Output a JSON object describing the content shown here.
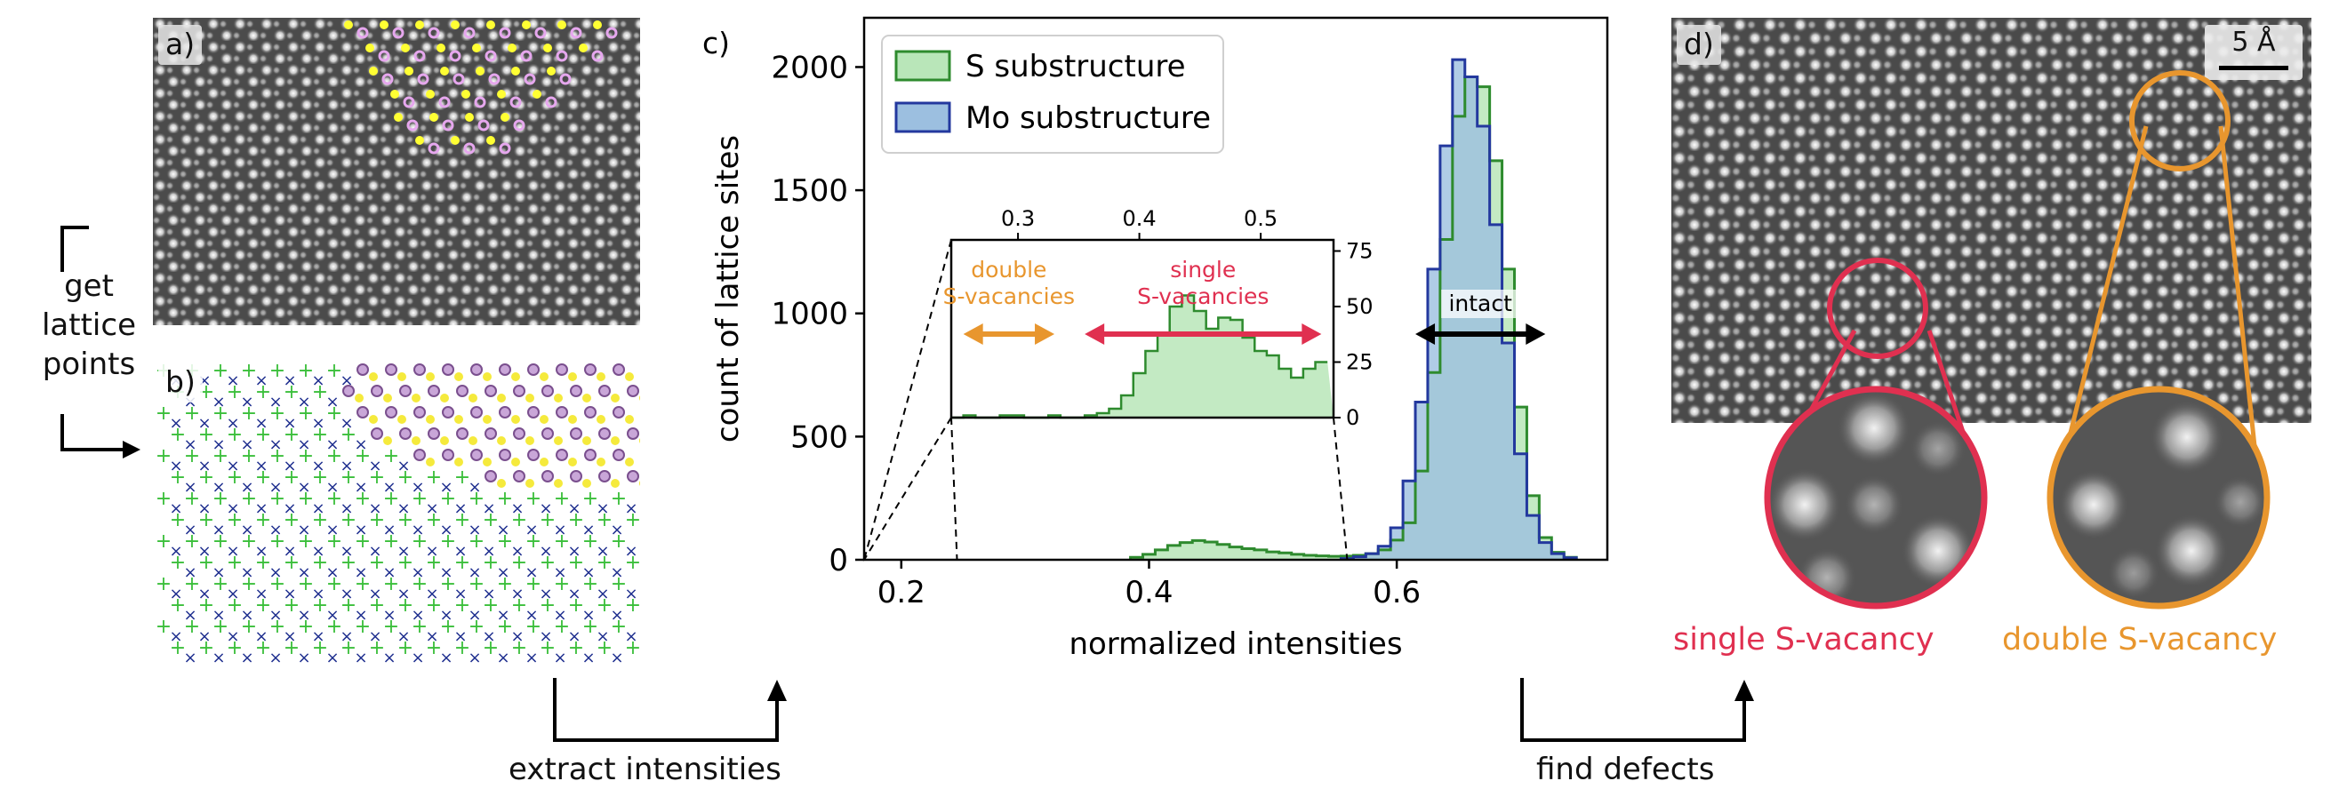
{
  "panels": {
    "a": {
      "tag": "a)"
    },
    "b": {
      "tag": "b)"
    },
    "c": {
      "tag": "c)"
    },
    "d": {
      "tag": "d)",
      "scalebar": "5 Å"
    }
  },
  "flow": {
    "get_lattice_points": [
      "get",
      "lattice",
      "points"
    ],
    "extract_intensities": "extract intensities",
    "find_defects": "find defects"
  },
  "chart_data": {
    "type": "area",
    "title": "",
    "xlabel": "normalized intensities",
    "ylabel": "count of lattice sites",
    "xlim": [
      0.17,
      0.77
    ],
    "ylim": [
      0,
      2200
    ],
    "xticks": [
      0.2,
      0.4,
      0.6
    ],
    "yticks": [
      0,
      500,
      1000,
      1500,
      2000
    ],
    "legend_placement": "top-left",
    "bin_width": 0.01,
    "series": [
      {
        "name": "S substructure",
        "color": "#2e8b2e",
        "fill": "#b9e6b9",
        "x": [
          0.39,
          0.4,
          0.41,
          0.42,
          0.43,
          0.44,
          0.45,
          0.46,
          0.47,
          0.48,
          0.49,
          0.5,
          0.51,
          0.52,
          0.53,
          0.54,
          0.55,
          0.56,
          0.57,
          0.58,
          0.59,
          0.6,
          0.61,
          0.62,
          0.63,
          0.64,
          0.65,
          0.66,
          0.67,
          0.68,
          0.69,
          0.7,
          0.71,
          0.72,
          0.73,
          0.74
        ],
        "values": [
          10,
          22,
          40,
          58,
          70,
          78,
          72,
          62,
          52,
          45,
          40,
          32,
          28,
          22,
          18,
          16,
          14,
          15,
          18,
          25,
          40,
          80,
          150,
          360,
          760,
          1300,
          1800,
          1960,
          1920,
          1620,
          1180,
          620,
          260,
          90,
          30,
          10
        ]
      },
      {
        "name": "Mo substructure",
        "color": "#23389e",
        "fill": "#9cbfe0",
        "x": [
          0.56,
          0.57,
          0.58,
          0.59,
          0.6,
          0.61,
          0.62,
          0.63,
          0.64,
          0.65,
          0.66,
          0.67,
          0.68,
          0.69,
          0.7,
          0.71,
          0.72,
          0.73,
          0.74
        ],
        "values": [
          5,
          12,
          25,
          55,
          130,
          320,
          640,
          1180,
          1680,
          2030,
          1960,
          1760,
          1360,
          880,
          430,
          180,
          70,
          25,
          8
        ]
      }
    ],
    "inset": {
      "xlim": [
        0.245,
        0.56
      ],
      "ylim": [
        0,
        80
      ],
      "xticks": [
        0.3,
        0.4,
        0.5
      ],
      "yticks": [
        0,
        25,
        50,
        75
      ],
      "x": [
        0.25,
        0.26,
        0.27,
        0.28,
        0.29,
        0.3,
        0.31,
        0.32,
        0.33,
        0.34,
        0.35,
        0.36,
        0.37,
        0.38,
        0.39,
        0.4,
        0.41,
        0.42,
        0.43,
        0.44,
        0.45,
        0.46,
        0.47,
        0.48,
        0.49,
        0.5,
        0.51,
        0.52,
        0.53,
        0.54,
        0.55
      ],
      "values": [
        0,
        1,
        0,
        0,
        1,
        1,
        0,
        0,
        1,
        0,
        0,
        1,
        2,
        4,
        10,
        20,
        30,
        38,
        50,
        55,
        48,
        40,
        45,
        44,
        36,
        30,
        28,
        22,
        18,
        22,
        25
      ],
      "annotations": [
        {
          "text": [
            "double",
            "S-vacancies"
          ],
          "color": "#e8962e",
          "x_from": 0.255,
          "x_to": 0.33
        },
        {
          "text": [
            "single",
            "S-vacancies"
          ],
          "color": "#e03050",
          "x_from": 0.355,
          "x_to": 0.55
        },
        {
          "text": [
            "intact"
          ],
          "color": "#000000",
          "x_from": 0.615,
          "x_to": 0.72
        }
      ]
    }
  },
  "detail": {
    "single_label": "single S-vacancy",
    "double_label": "double S-vacancy",
    "single_color": "#e03050",
    "double_color": "#e8962e"
  }
}
